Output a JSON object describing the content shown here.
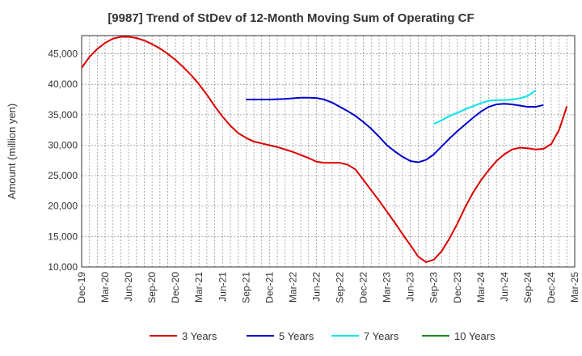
{
  "chart_data": {
    "type": "line",
    "title": "[9987]  Trend of StDev of 12-Month Moving Sum of Operating CF",
    "xlabel": "",
    "ylabel": "Amount (million yen)",
    "ylim": [
      10000,
      48000
    ],
    "yticks": [
      10000,
      15000,
      20000,
      25000,
      30000,
      35000,
      40000,
      45000
    ],
    "ytick_labels": [
      "10,000",
      "15,000",
      "20,000",
      "25,000",
      "30,000",
      "35,000",
      "40,000",
      "45,000"
    ],
    "x_start": "Dec-19",
    "x_end": "Mar-25",
    "xtick_labels": [
      "Dec-19",
      "Mar-20",
      "Jun-20",
      "Sep-20",
      "Dec-20",
      "Mar-21",
      "Jun-21",
      "Sep-21",
      "Dec-21",
      "Mar-22",
      "Jun-22",
      "Sep-22",
      "Dec-22",
      "Mar-23",
      "Jun-23",
      "Sep-23",
      "Dec-23",
      "Mar-24",
      "Jun-24",
      "Sep-24",
      "Dec-24",
      "Mar-25"
    ],
    "grid": true,
    "legend_position": "bottom",
    "series": [
      {
        "name": "3 Years",
        "color": "#dd0000",
        "start": "Dec-19",
        "values": [
          42700,
          44500,
          45800,
          46800,
          47500,
          47800,
          47800,
          47600,
          47200,
          46600,
          45900,
          45000,
          44000,
          42800,
          41500,
          40000,
          38300,
          36400,
          34700,
          33200,
          32000,
          31200,
          30600,
          30300,
          30000,
          29700,
          29300,
          28900,
          28400,
          27900,
          27300,
          27100,
          27100,
          27100,
          26800,
          26000,
          24300,
          22600,
          20900,
          19100,
          17300,
          15400,
          13600,
          11700,
          10800,
          11200,
          12600,
          14700,
          17100,
          19800,
          22200,
          24200,
          25900,
          27400,
          28500,
          29300,
          29600,
          29500,
          29300,
          29400,
          30200,
          32500,
          36400
        ]
      },
      {
        "name": "5 Years",
        "color": "#0000cc",
        "start": "Sep-21",
        "values": [
          37500,
          37500,
          37500,
          37500,
          37550,
          37600,
          37700,
          37800,
          37800,
          37750,
          37500,
          37000,
          36300,
          35600,
          34800,
          33800,
          32700,
          31400,
          30000,
          29000,
          28100,
          27400,
          27200,
          27600,
          28500,
          29800,
          31100,
          32300,
          33400,
          34500,
          35500,
          36300,
          36700,
          36800,
          36700,
          36500,
          36300,
          36300,
          36600
        ]
      },
      {
        "name": "7 Years",
        "color": "#00e5ee",
        "start": "Sep-23",
        "values": [
          33500,
          34100,
          34800,
          35300,
          35900,
          36400,
          36900,
          37300,
          37400,
          37400,
          37500,
          37700,
          38100,
          39000
        ]
      },
      {
        "name": "10 Years",
        "color": "#1a8c1a",
        "start": "Dec-19",
        "values": []
      }
    ]
  }
}
